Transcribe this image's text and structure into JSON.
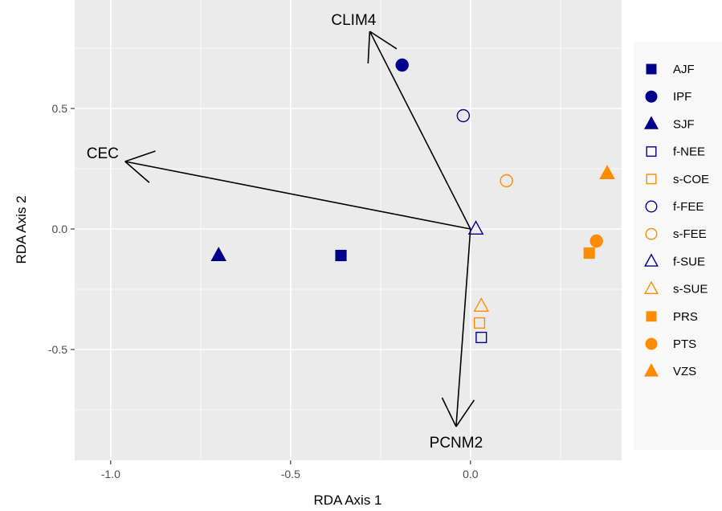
{
  "chart_data": {
    "type": "scatter",
    "title": "",
    "xlabel": "RDA Axis 1",
    "ylabel": "RDA Axis 2",
    "xlim": [
      -1.1,
      0.42
    ],
    "ylim": [
      -0.96,
      0.95
    ],
    "x_ticks": [
      -1.0,
      -0.5,
      0.0
    ],
    "x_tick_labels": [
      "-1.0",
      "-0.5",
      "0.0"
    ],
    "y_ticks": [
      -0.5,
      0.0,
      0.5
    ],
    "y_tick_labels": [
      "-0.5",
      "0.0",
      "0.5"
    ],
    "grid": true,
    "legend_position": "right",
    "colors": {
      "navy": "#00008B",
      "orange": "#FF8C00",
      "panel": "#EBEBEB",
      "grid": "#FFFFFF"
    },
    "series": [
      {
        "name": "AJF",
        "shape": "square",
        "filled": true,
        "color": "navy",
        "points": [
          [
            -0.36,
            -0.11
          ]
        ]
      },
      {
        "name": "IPF",
        "shape": "circle",
        "filled": true,
        "color": "navy",
        "points": [
          [
            -0.19,
            0.68
          ]
        ]
      },
      {
        "name": "SJF",
        "shape": "triangle",
        "filled": true,
        "color": "navy",
        "points": [
          [
            -0.7,
            -0.11
          ]
        ]
      },
      {
        "name": "f-NEE",
        "shape": "square",
        "filled": false,
        "color": "navy",
        "points": [
          [
            0.03,
            -0.45
          ]
        ]
      },
      {
        "name": "s-COE",
        "shape": "square",
        "filled": false,
        "color": "orange",
        "points": [
          [
            0.025,
            -0.39
          ]
        ]
      },
      {
        "name": "f-FEE",
        "shape": "circle",
        "filled": false,
        "color": "navy",
        "points": [
          [
            -0.02,
            0.47
          ]
        ]
      },
      {
        "name": "s-FEE",
        "shape": "circle",
        "filled": false,
        "color": "orange",
        "points": [
          [
            0.1,
            0.2
          ]
        ]
      },
      {
        "name": "f-SUE",
        "shape": "triangle",
        "filled": false,
        "color": "navy",
        "points": [
          [
            0.015,
            0.0
          ]
        ]
      },
      {
        "name": "s-SUE",
        "shape": "triangle",
        "filled": false,
        "color": "orange",
        "points": [
          [
            0.03,
            -0.32
          ]
        ]
      },
      {
        "name": "PRS",
        "shape": "square",
        "filled": true,
        "color": "orange",
        "points": [
          [
            0.33,
            -0.1
          ]
        ]
      },
      {
        "name": "PTS",
        "shape": "circle",
        "filled": true,
        "color": "orange",
        "points": [
          [
            0.35,
            -0.05
          ]
        ]
      },
      {
        "name": "VZS",
        "shape": "triangle",
        "filled": true,
        "color": "orange",
        "points": [
          [
            0.38,
            0.23
          ]
        ]
      }
    ],
    "arrows": [
      {
        "label": "CLIM4",
        "from": [
          0.0,
          0.0
        ],
        "to": [
          -0.28,
          0.82
        ]
      },
      {
        "label": "CEC",
        "from": [
          0.0,
          0.0
        ],
        "to": [
          -0.96,
          0.28
        ]
      },
      {
        "label": "PCNM2",
        "from": [
          0.0,
          0.0
        ],
        "to": [
          -0.04,
          -0.82
        ]
      }
    ]
  }
}
